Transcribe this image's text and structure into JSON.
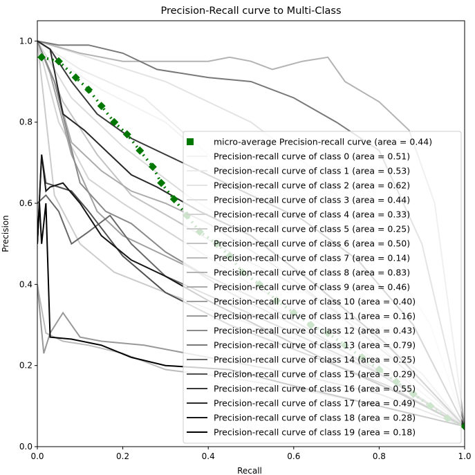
{
  "chart_data": {
    "type": "line",
    "title": "Precision-Recall curve to Multi-Class",
    "xlabel": "Recall",
    "ylabel": "Precision",
    "xlim": [
      0,
      1
    ],
    "ylim": [
      0,
      1.05
    ],
    "xticks": [
      "0.0",
      "0.2",
      "0.4",
      "0.6",
      "0.8",
      "1.0"
    ],
    "yticks": [
      "0.0",
      "0.2",
      "0.4",
      "0.6",
      "0.8",
      "1.0"
    ],
    "grid": false,
    "legend_position": "lower-right",
    "micro_average": {
      "name": "micro-average Precision-recall curve (area = 0.44)",
      "color": "#007700",
      "x": [
        0.01,
        0.05,
        0.09,
        0.12,
        0.15,
        0.18,
        0.21,
        0.24,
        0.27,
        0.29,
        0.32,
        0.35,
        0.38,
        0.42,
        0.45,
        0.48,
        0.52,
        0.56,
        0.6,
        0.64,
        0.68,
        0.72,
        0.76,
        0.8,
        0.84,
        0.88,
        0.92,
        0.96,
        1.0
      ],
      "y": [
        0.96,
        0.95,
        0.91,
        0.88,
        0.84,
        0.8,
        0.77,
        0.73,
        0.69,
        0.65,
        0.61,
        0.57,
        0.53,
        0.5,
        0.47,
        0.43,
        0.4,
        0.36,
        0.33,
        0.3,
        0.28,
        0.25,
        0.22,
        0.19,
        0.16,
        0.13,
        0.1,
        0.07,
        0.05
      ]
    },
    "series": [
      {
        "name": "Precision-recall curve of class 0 (area = 0.51)",
        "color": "#f3f3f3",
        "x": [
          0,
          0.05,
          0.15,
          0.3,
          0.45,
          0.6,
          0.75,
          0.9,
          1.0
        ],
        "y": [
          1.0,
          0.95,
          0.88,
          0.8,
          0.66,
          0.5,
          0.33,
          0.17,
          0.05
        ]
      },
      {
        "name": "Precision-recall curve of class 1 (area = 0.53)",
        "color": "#ebebeb",
        "x": [
          0,
          0.1,
          0.25,
          0.4,
          0.55,
          0.7,
          0.85,
          1.0
        ],
        "y": [
          1.0,
          0.93,
          0.86,
          0.72,
          0.58,
          0.42,
          0.22,
          0.05
        ]
      },
      {
        "name": "Precision-recall curve of class 2 (area = 0.62)",
        "color": "#e3e3e3",
        "x": [
          0,
          0.12,
          0.3,
          0.5,
          0.65,
          0.8,
          0.92,
          1.0
        ],
        "y": [
          1.0,
          0.96,
          0.9,
          0.8,
          0.68,
          0.5,
          0.3,
          0.05
        ]
      },
      {
        "name": "Precision-recall curve of class 3 (area = 0.44)",
        "color": "#dbdbdb",
        "x": [
          0,
          0.08,
          0.2,
          0.35,
          0.5,
          0.7,
          0.85,
          1.0
        ],
        "y": [
          1.0,
          0.86,
          0.74,
          0.62,
          0.52,
          0.36,
          0.2,
          0.05
        ]
      },
      {
        "name": "Precision-recall curve of class 4 (area = 0.33)",
        "color": "#d3d3d3",
        "x": [
          0,
          0.05,
          0.12,
          0.2,
          0.32,
          0.5,
          0.7,
          0.88,
          1.0
        ],
        "y": [
          1.0,
          0.8,
          0.66,
          0.6,
          0.52,
          0.4,
          0.28,
          0.15,
          0.05
        ]
      },
      {
        "name": "Precision-recall curve of class 5 (area = 0.25)",
        "color": "#cbcbcb",
        "x": [
          0,
          0.04,
          0.1,
          0.18,
          0.3,
          0.45,
          0.62,
          0.8,
          1.0
        ],
        "y": [
          1.0,
          0.62,
          0.5,
          0.43,
          0.38,
          0.32,
          0.26,
          0.18,
          0.05
        ]
      },
      {
        "name": "Precision-recall curve of class 6 (area = 0.50)",
        "color": "#c3c3c3",
        "x": [
          0,
          0.06,
          0.14,
          0.22,
          0.32,
          0.45,
          0.6,
          0.75,
          0.9,
          1.0
        ],
        "y": [
          1.0,
          0.85,
          0.72,
          0.62,
          0.56,
          0.48,
          0.4,
          0.3,
          0.18,
          0.05
        ]
      },
      {
        "name": "Precision-recall curve of class 7 (area = 0.14)",
        "color": "#bbbbbb",
        "x": [
          0,
          0.02,
          0.06,
          0.12,
          0.2,
          0.3,
          0.45,
          0.62,
          0.8,
          1.0
        ],
        "y": [
          0.4,
          0.28,
          0.26,
          0.25,
          0.23,
          0.19,
          0.17,
          0.14,
          0.1,
          0.05
        ]
      },
      {
        "name": "Precision-recall curve of class 8 (area = 0.83)",
        "color": "#b3b3b3",
        "x": [
          0,
          0.1,
          0.2,
          0.3,
          0.4,
          0.45,
          0.5,
          0.55,
          0.62,
          0.68,
          0.72,
          0.8,
          0.87,
          0.93,
          1.0
        ],
        "y": [
          1.0,
          0.97,
          0.95,
          0.95,
          0.95,
          0.96,
          0.95,
          0.93,
          0.95,
          0.96,
          0.9,
          0.85,
          0.78,
          0.6,
          0.05
        ]
      },
      {
        "name": "Precision-recall curve of class 9 (area = 0.46)",
        "color": "#ababab",
        "x": [
          0,
          0.04,
          0.08,
          0.15,
          0.22,
          0.3,
          0.4,
          0.55,
          0.7,
          0.85,
          1.0
        ],
        "y": [
          1.0,
          0.9,
          0.75,
          0.68,
          0.63,
          0.6,
          0.55,
          0.45,
          0.33,
          0.2,
          0.05
        ]
      },
      {
        "name": "Precision-recall curve of class 10 (area = 0.40)",
        "color": "#a0a0a0",
        "x": [
          0,
          0.03,
          0.08,
          0.14,
          0.2,
          0.28,
          0.36,
          0.45,
          0.6,
          0.78,
          1.0
        ],
        "y": [
          1.0,
          0.92,
          0.72,
          0.58,
          0.52,
          0.48,
          0.44,
          0.38,
          0.3,
          0.2,
          0.05
        ]
      },
      {
        "name": "Precision-recall curve of class 11 (area = 0.16)",
        "color": "#989898",
        "x": [
          0,
          0.015,
          0.03,
          0.06,
          0.1,
          0.15,
          0.25,
          0.4,
          0.6,
          0.8,
          1.0
        ],
        "y": [
          0.4,
          0.23,
          0.28,
          0.33,
          0.27,
          0.26,
          0.25,
          0.22,
          0.18,
          0.13,
          0.05
        ]
      },
      {
        "name": "Precision-recall curve of class 12 (area = 0.43)",
        "color": "#8a8a8a",
        "x": [
          0,
          0.04,
          0.1,
          0.16,
          0.22,
          0.3,
          0.38,
          0.5,
          0.65,
          0.8,
          1.0
        ],
        "y": [
          1.0,
          0.9,
          0.65,
          0.58,
          0.55,
          0.48,
          0.43,
          0.37,
          0.28,
          0.18,
          0.05
        ]
      },
      {
        "name": "Precision-recall curve of class 13 (area = 0.79)",
        "color": "#787878",
        "x": [
          0,
          0.05,
          0.12,
          0.2,
          0.28,
          0.4,
          0.5,
          0.6,
          0.7,
          0.8,
          0.9,
          1.0
        ],
        "y": [
          1.0,
          0.99,
          0.99,
          0.97,
          0.93,
          0.91,
          0.9,
          0.86,
          0.8,
          0.73,
          0.5,
          0.05
        ]
      },
      {
        "name": "Precision-recall curve of class 14 (area = 0.25)",
        "color": "#686868",
        "x": [
          0,
          0.02,
          0.05,
          0.08,
          0.12,
          0.17,
          0.22,
          0.3,
          0.45,
          0.6,
          0.8,
          1.0
        ],
        "y": [
          0.6,
          0.62,
          0.58,
          0.5,
          0.53,
          0.57,
          0.5,
          0.42,
          0.35,
          0.28,
          0.18,
          0.05
        ]
      },
      {
        "name": "Precision-recall curve of class 15 (area = 0.29)",
        "color": "#505050",
        "x": [
          0,
          0.01,
          0.02,
          0.05,
          0.08,
          0.12,
          0.2,
          0.3,
          0.45,
          0.65,
          0.82,
          1.0
        ],
        "y": [
          0.5,
          0.72,
          0.65,
          0.64,
          0.63,
          0.58,
          0.47,
          0.38,
          0.3,
          0.22,
          0.15,
          0.05
        ]
      },
      {
        "name": "Precision-recall curve of class 16 (area = 0.55)",
        "color": "#383838",
        "x": [
          0,
          0.03,
          0.08,
          0.14,
          0.22,
          0.3,
          0.38,
          0.5,
          0.62,
          0.75,
          0.88,
          1.0
        ],
        "y": [
          1.0,
          0.98,
          0.9,
          0.82,
          0.76,
          0.72,
          0.68,
          0.62,
          0.56,
          0.46,
          0.3,
          0.05
        ]
      },
      {
        "name": "Precision-recall curve of class 17 (area = 0.49)",
        "color": "#282828",
        "x": [
          0,
          0.03,
          0.06,
          0.11,
          0.17,
          0.22,
          0.28,
          0.38,
          0.5,
          0.65,
          0.82,
          1.0
        ],
        "y": [
          1.0,
          0.98,
          0.82,
          0.78,
          0.72,
          0.67,
          0.64,
          0.58,
          0.52,
          0.4,
          0.25,
          0.05
        ]
      },
      {
        "name": "Precision-recall curve of class 18 (area = 0.28)",
        "color": "#151515",
        "x": [
          0,
          0.01,
          0.02,
          0.03,
          0.06,
          0.1,
          0.15,
          0.22,
          0.3,
          0.4,
          0.55,
          0.7,
          0.85,
          1.0
        ],
        "y": [
          0.5,
          0.72,
          0.63,
          0.64,
          0.65,
          0.6,
          0.52,
          0.46,
          0.42,
          0.36,
          0.28,
          0.2,
          0.13,
          0.05
        ]
      },
      {
        "name": "Precision-recall curve of class 19 (area = 0.18)",
        "color": "#000000",
        "x": [
          0,
          0.005,
          0.01,
          0.02,
          0.03,
          0.08,
          0.15,
          0.22,
          0.3,
          0.45,
          0.6,
          0.8,
          1.0
        ],
        "y": [
          0.5,
          0.6,
          0.5,
          0.6,
          0.27,
          0.265,
          0.25,
          0.22,
          0.2,
          0.19,
          0.15,
          0.1,
          0.05
        ]
      }
    ]
  }
}
